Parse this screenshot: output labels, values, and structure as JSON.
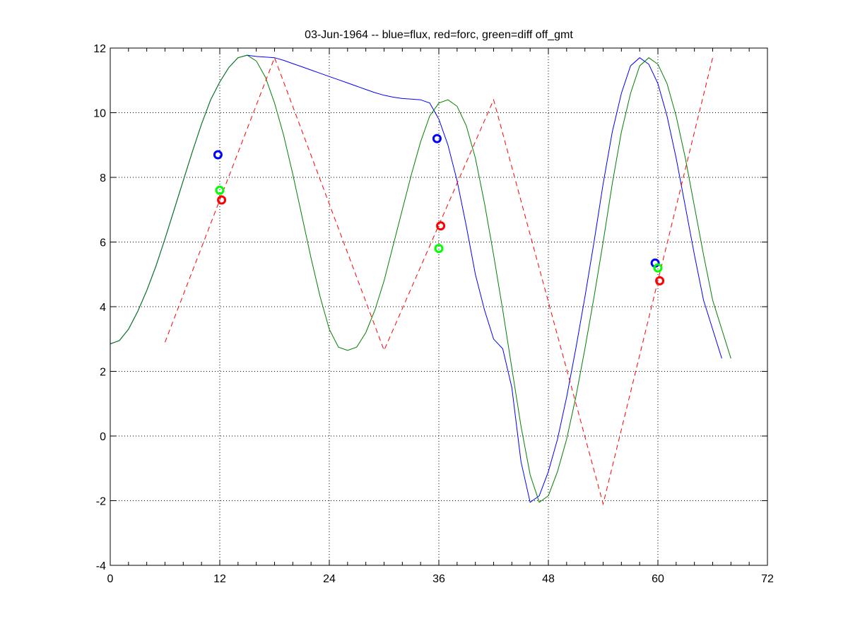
{
  "chart_data": {
    "type": "line",
    "title": "03-Jun-1964 -- blue=flux, red=forc, green=diff off_gmt",
    "xlabel": "",
    "ylabel": "",
    "xlim": [
      0,
      72
    ],
    "ylim": [
      -4,
      12
    ],
    "xticks": [
      0,
      12,
      24,
      36,
      48,
      60,
      72
    ],
    "yticks": [
      -4,
      -2,
      0,
      2,
      4,
      6,
      8,
      10,
      12
    ],
    "xtick_labels": [
      "0",
      "12",
      "24",
      "36",
      "48",
      "60",
      "72"
    ],
    "ytick_labels": [
      "-4",
      "-2",
      "0",
      "2",
      "4",
      "6",
      "8",
      "10",
      "12"
    ],
    "grid": true,
    "grid_style": "dotted",
    "series": [
      {
        "color": "#0000ff",
        "style": "solid",
        "x": [
          0,
          1,
          2,
          3,
          4,
          5,
          6,
          7,
          8,
          9,
          10,
          11,
          12,
          13,
          14,
          15,
          16,
          17,
          18,
          19,
          20,
          21,
          22,
          23,
          24,
          25,
          26,
          27,
          28,
          29,
          30,
          31,
          32,
          33,
          34,
          35,
          36,
          37,
          38,
          39,
          40,
          41,
          42,
          43,
          44,
          45,
          46,
          47,
          48,
          49,
          50,
          51,
          52,
          53,
          54,
          55,
          56,
          57,
          58,
          59,
          60,
          61,
          62,
          63,
          64,
          65,
          66,
          67,
          68,
          69,
          70,
          71
        ],
        "y": [
          2.85,
          2.95,
          3.3,
          3.85,
          4.5,
          5.25,
          6.1,
          7.0,
          7.9,
          8.8,
          9.65,
          10.4,
          10.95,
          11.4,
          11.7,
          11.78,
          11.74,
          11.72,
          11.7,
          11.62,
          11.52,
          11.42,
          11.32,
          11.22,
          11.12,
          11.02,
          10.92,
          10.82,
          10.72,
          10.62,
          10.54,
          10.48,
          10.44,
          10.42,
          10.4,
          10.3,
          9.8,
          9.0,
          7.9,
          6.5,
          5.0,
          3.9,
          3.0,
          2.7,
          1.5,
          -0.8,
          -2.05,
          -1.85,
          -1.1,
          -0.1,
          1.2,
          2.7,
          4.3,
          6.0,
          7.8,
          9.4,
          10.6,
          11.45,
          11.7,
          11.5,
          10.9,
          9.9,
          8.6,
          7.1,
          5.6,
          4.2,
          3.3,
          2.4,
          null,
          null,
          null,
          null
        ]
      },
      {
        "color": "#008000",
        "style": "solid",
        "x": [
          0,
          1,
          2,
          3,
          4,
          5,
          6,
          7,
          8,
          9,
          10,
          11,
          12,
          13,
          14,
          15,
          16,
          17,
          18,
          19,
          20,
          21,
          22,
          23,
          24,
          25,
          26,
          27,
          28,
          29,
          30,
          31,
          32,
          33,
          34,
          35,
          36,
          37,
          38,
          39,
          40,
          41,
          42,
          43,
          44,
          45,
          46,
          47,
          48,
          49,
          50,
          51,
          52,
          53,
          54,
          55,
          56,
          57,
          58,
          59,
          60,
          61,
          62,
          63,
          64,
          65,
          66,
          67,
          68,
          69,
          70,
          71
        ],
        "y": [
          2.85,
          2.95,
          3.3,
          3.85,
          4.5,
          5.25,
          6.1,
          7.0,
          7.9,
          8.8,
          9.65,
          10.4,
          10.95,
          11.4,
          11.7,
          11.78,
          11.6,
          11.1,
          10.3,
          9.3,
          8.1,
          6.8,
          5.5,
          4.3,
          3.3,
          2.75,
          2.65,
          2.75,
          3.2,
          3.9,
          4.8,
          5.9,
          7.0,
          8.1,
          9.1,
          9.9,
          10.3,
          10.4,
          10.2,
          9.6,
          8.6,
          7.2,
          5.6,
          3.9,
          2.1,
          0.3,
          -1.2,
          -2.05,
          -1.85,
          -1.1,
          -0.1,
          1.2,
          2.7,
          4.3,
          6.0,
          7.8,
          9.4,
          10.6,
          11.45,
          11.7,
          11.5,
          10.9,
          9.9,
          8.6,
          7.1,
          5.6,
          4.2,
          3.3,
          2.4,
          null,
          null,
          null
        ]
      },
      {
        "color": "#ff0000",
        "style": "dashed",
        "x": [
          6,
          18,
          30,
          42,
          54,
          66
        ],
        "y": [
          2.9,
          11.7,
          2.65,
          10.4,
          -2.1,
          11.7
        ]
      }
    ],
    "markers": [
      {
        "color": "#0000ff",
        "x": 11.8,
        "y": 8.7
      },
      {
        "color": "#00ff00",
        "x": 12.0,
        "y": 7.6
      },
      {
        "color": "#ff0000",
        "x": 12.2,
        "y": 7.3
      },
      {
        "color": "#0000ff",
        "x": 35.8,
        "y": 9.2
      },
      {
        "color": "#ff0000",
        "x": 36.2,
        "y": 6.5
      },
      {
        "color": "#00ff00",
        "x": 36.0,
        "y": 5.8
      },
      {
        "color": "#0000ff",
        "x": 59.7,
        "y": 5.35
      },
      {
        "color": "#00ff00",
        "x": 60.0,
        "y": 5.2
      },
      {
        "color": "#ff0000",
        "x": 60.2,
        "y": 4.8
      }
    ]
  }
}
